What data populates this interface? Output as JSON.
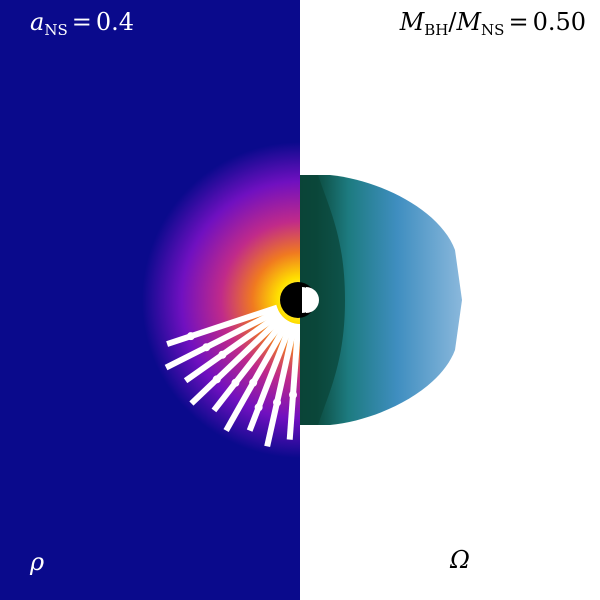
{
  "top_left": {
    "symbol": "a",
    "subscript": "NS",
    "relation": "=",
    "value": "0.4"
  },
  "top_right": {
    "symbol1": "M",
    "subscript1": "BH",
    "slash": "/",
    "symbol2": "M",
    "subscript2": "NS",
    "relation": "=",
    "value": "0.50"
  },
  "left_panel_label": "ρ",
  "right_panel_label": "Ω"
}
